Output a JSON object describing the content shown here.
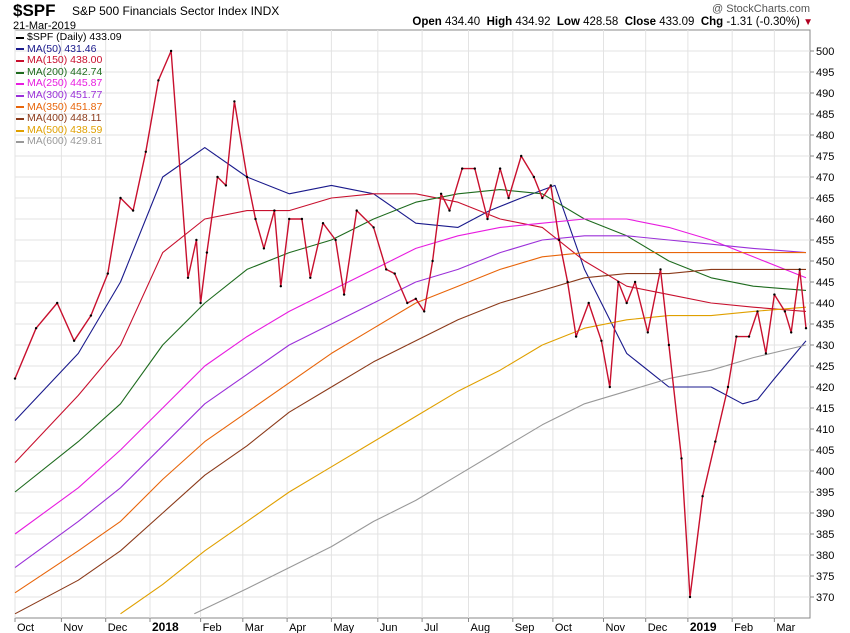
{
  "header": {
    "symbol": "$SPF",
    "title": "S&P 500 Financials Sector Index",
    "exchange": "INDX",
    "date": "21-Mar-2019",
    "watermark": "@ StockCharts.com",
    "open_label": "Open",
    "open": "434.40",
    "high_label": "High",
    "high": "434.92",
    "low_label": "Low",
    "low": "428.58",
    "close_label": "Close",
    "close": "433.09",
    "chg_label": "Chg",
    "chg": "-1.31 (-0.30%)"
  },
  "legend": [
    {
      "label": "$SPF (Daily) 433.09",
      "color": "#000000"
    },
    {
      "label": "MA(50) 431.46",
      "color": "#1a1a8c"
    },
    {
      "label": "MA(150) 438.00",
      "color": "#c8102e"
    },
    {
      "label": "MA(200) 442.74",
      "color": "#1e6b1e"
    },
    {
      "label": "MA(250) 445.87",
      "color": "#e81ce0"
    },
    {
      "label": "MA(300) 451.77",
      "color": "#9b30d9"
    },
    {
      "label": "MA(350) 451.87",
      "color": "#e8650a"
    },
    {
      "label": "MA(400) 448.11",
      "color": "#8b3a1a"
    },
    {
      "label": "MA(500) 438.59",
      "color": "#e0a000"
    },
    {
      "label": "MA(600) 429.81",
      "color": "#999999"
    }
  ],
  "chart_data": {
    "type": "line",
    "title": "$SPF S&P 500 Financials Sector Index INDX",
    "xlabel": "",
    "ylabel": "",
    "ylim": [
      365,
      505
    ],
    "x_ticks": [
      "Oct",
      "Nov",
      "Dec",
      "2018",
      "Feb",
      "Mar",
      "Apr",
      "May",
      "Jun",
      "Jul",
      "Aug",
      "Sep",
      "Oct",
      "Nov",
      "Dec",
      "2019",
      "Feb",
      "Mar"
    ],
    "x_tick_positions": [
      0,
      22,
      43,
      64,
      88,
      108,
      129,
      150,
      172,
      193,
      215,
      236,
      255,
      279,
      299,
      319,
      340,
      360
    ],
    "y_ticks": [
      370,
      375,
      380,
      385,
      390,
      395,
      400,
      405,
      410,
      415,
      420,
      425,
      430,
      435,
      440,
      445,
      450,
      455,
      460,
      465,
      470,
      475,
      480,
      485,
      490,
      495,
      500
    ],
    "grid": true,
    "series": [
      {
        "name": "$SPF (Daily)",
        "color": "#c8102e",
        "x": [
          0,
          10,
          20,
          28,
          36,
          44,
          50,
          56,
          62,
          68,
          74,
          82,
          86,
          88,
          91,
          96,
          100,
          104,
          110,
          114,
          118,
          123,
          126,
          130,
          136,
          140,
          146,
          152,
          156,
          162,
          170,
          176,
          180,
          186,
          190,
          194,
          198,
          202,
          206,
          212,
          218,
          224,
          230,
          234,
          240,
          246,
          250,
          254,
          258,
          262,
          266,
          272,
          278,
          282,
          286,
          290,
          294,
          300,
          306,
          310,
          316,
          320,
          326,
          332,
          338,
          342,
          348,
          352,
          356,
          360,
          365,
          368,
          372,
          375
        ],
        "values": [
          422,
          434,
          440,
          431,
          437,
          447,
          465,
          462,
          476,
          493,
          500,
          446,
          455,
          440,
          452,
          470,
          468,
          488,
          470,
          460,
          453,
          462,
          444,
          460,
          460,
          446,
          459,
          455,
          442,
          462,
          458,
          448,
          447,
          440,
          441,
          438,
          450,
          466,
          462,
          472,
          472,
          460,
          472,
          465,
          475,
          470,
          465,
          468,
          455,
          445,
          432,
          440,
          431,
          420,
          445,
          440,
          445,
          433,
          448,
          430,
          403,
          370,
          394,
          407,
          420,
          432,
          432,
          438,
          428,
          442,
          438,
          433,
          448,
          434
        ]
      },
      {
        "name": "MA(50)",
        "color": "#1a1a8c",
        "x": [
          0,
          30,
          50,
          70,
          90,
          110,
          130,
          150,
          170,
          190,
          210,
          225,
          240,
          256,
          270,
          290,
          310,
          330,
          345,
          352,
          360,
          370,
          375
        ],
        "values": [
          412,
          428,
          445,
          470,
          477,
          470,
          466,
          468,
          466,
          459,
          458,
          462,
          465,
          468,
          448,
          428,
          420,
          420,
          416,
          417,
          422,
          428,
          431
        ]
      },
      {
        "name": "MA(150)",
        "color": "#c8102e",
        "x": [
          0,
          30,
          50,
          70,
          90,
          110,
          130,
          150,
          170,
          190,
          210,
          230,
          250,
          270,
          290,
          310,
          330,
          350,
          375
        ],
        "values": [
          402,
          418,
          430,
          452,
          460,
          462,
          462,
          465,
          466,
          466,
          464,
          460,
          458,
          450,
          444,
          442,
          440,
          439,
          438
        ]
      },
      {
        "name": "MA(200)",
        "color": "#1e6b1e",
        "x": [
          0,
          30,
          50,
          70,
          90,
          110,
          130,
          150,
          170,
          190,
          210,
          230,
          250,
          270,
          290,
          310,
          330,
          350,
          375
        ],
        "values": [
          395,
          407,
          416,
          430,
          440,
          448,
          452,
          455,
          460,
          464,
          466,
          467,
          466,
          460,
          456,
          450,
          446,
          444,
          443
        ]
      },
      {
        "name": "MA(250)",
        "color": "#e81ce0",
        "x": [
          0,
          30,
          50,
          70,
          90,
          110,
          130,
          150,
          170,
          190,
          210,
          230,
          250,
          270,
          290,
          310,
          330,
          350,
          375
        ],
        "values": [
          385,
          396,
          405,
          415,
          425,
          432,
          438,
          443,
          448,
          453,
          456,
          458,
          459,
          460,
          460,
          458,
          455,
          451,
          446
        ]
      },
      {
        "name": "MA(300)",
        "color": "#9b30d9",
        "x": [
          0,
          30,
          50,
          70,
          90,
          110,
          130,
          150,
          170,
          190,
          210,
          230,
          250,
          270,
          290,
          310,
          330,
          350,
          375
        ],
        "values": [
          377,
          388,
          396,
          406,
          416,
          423,
          430,
          435,
          440,
          445,
          448,
          452,
          455,
          456,
          456,
          455,
          454,
          453,
          452
        ]
      },
      {
        "name": "MA(350)",
        "color": "#e8650a",
        "x": [
          0,
          30,
          50,
          70,
          90,
          110,
          130,
          150,
          170,
          190,
          210,
          230,
          250,
          270,
          290,
          310,
          330,
          350,
          375
        ],
        "values": [
          371,
          381,
          388,
          398,
          407,
          414,
          421,
          428,
          434,
          440,
          444,
          448,
          451,
          452,
          452,
          452,
          452,
          452,
          452
        ]
      },
      {
        "name": "MA(400)",
        "color": "#8b3a1a",
        "x": [
          0,
          30,
          50,
          70,
          90,
          110,
          130,
          150,
          170,
          190,
          210,
          230,
          250,
          270,
          290,
          310,
          330,
          350,
          375
        ],
        "values": [
          366,
          374,
          381,
          390,
          399,
          406,
          414,
          420,
          426,
          431,
          436,
          440,
          443,
          446,
          447,
          447,
          448,
          448,
          448
        ]
      },
      {
        "name": "MA(500)",
        "color": "#e0a000",
        "x": [
          50,
          70,
          90,
          110,
          130,
          150,
          170,
          190,
          210,
          230,
          250,
          270,
          290,
          310,
          330,
          350,
          375
        ],
        "values": [
          366,
          373,
          381,
          388,
          395,
          401,
          407,
          413,
          419,
          424,
          430,
          434,
          436,
          437,
          437,
          438,
          439
        ]
      },
      {
        "name": "MA(600)",
        "color": "#999999",
        "x": [
          85,
          110,
          130,
          150,
          170,
          190,
          210,
          230,
          250,
          270,
          290,
          310,
          330,
          350,
          375
        ],
        "values": [
          366,
          372,
          377,
          382,
          388,
          393,
          399,
          405,
          411,
          416,
          419,
          422,
          424,
          427,
          430
        ]
      }
    ]
  }
}
